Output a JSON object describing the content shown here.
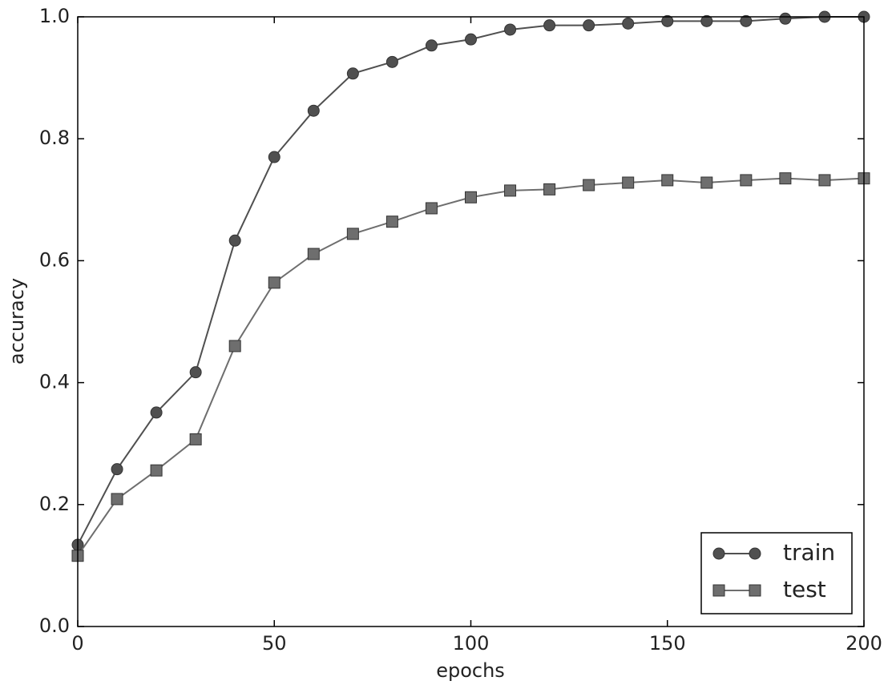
{
  "chart_data": {
    "type": "line",
    "x_label": "epochs",
    "y_label": "accuracy",
    "x": [
      0,
      10,
      20,
      30,
      40,
      50,
      60,
      70,
      80,
      90,
      100,
      110,
      120,
      130,
      140,
      150,
      160,
      170,
      180,
      190,
      200
    ],
    "series": [
      {
        "name": "train",
        "color": "#505050",
        "marker": "circle",
        "values": [
          0.134,
          0.258,
          0.351,
          0.417,
          0.633,
          0.77,
          0.846,
          0.907,
          0.926,
          0.953,
          0.963,
          0.979,
          0.986,
          0.986,
          0.989,
          0.993,
          0.993,
          0.993,
          0.997,
          1.0,
          1.0
        ]
      },
      {
        "name": "test",
        "color": "#6e6e6e",
        "marker": "square",
        "values": [
          0.116,
          0.209,
          0.256,
          0.307,
          0.46,
          0.564,
          0.611,
          0.644,
          0.664,
          0.686,
          0.704,
          0.715,
          0.717,
          0.724,
          0.728,
          0.732,
          0.728,
          0.732,
          0.735,
          0.732,
          0.735
        ]
      }
    ],
    "xlim": [
      0,
      200
    ],
    "xticks": [
      0,
      50,
      100,
      150,
      200
    ],
    "ylim": [
      0,
      1
    ],
    "yticks": [
      {
        "value": 0,
        "label": "0.0"
      },
      0.2,
      0.4,
      0.6,
      0.8,
      {
        "value": 1,
        "label": "1.0"
      }
    ],
    "grid": false,
    "legend": "lower right"
  }
}
